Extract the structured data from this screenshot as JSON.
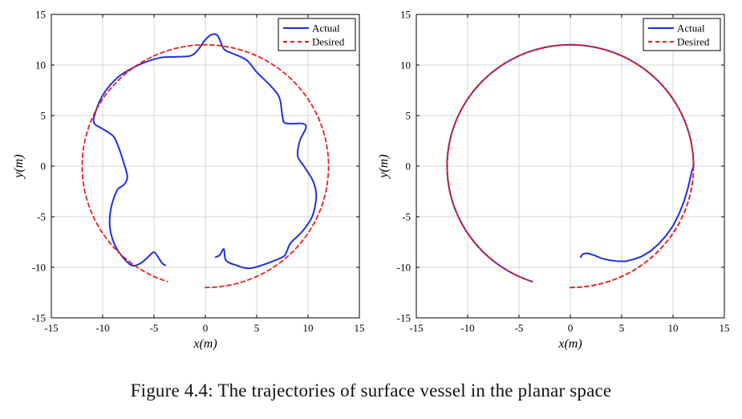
{
  "caption": "Figure 4.4: The trajectories of surface vessel in the planar space",
  "colors": {
    "actual": "#1f2fe0",
    "desired": "#ee1c1c",
    "grid": "#d6d6d6",
    "axis": "#000000"
  },
  "chart_data": [
    {
      "type": "line",
      "xlabel": "x(m)",
      "ylabel": "y(m)",
      "xlim": [
        -15,
        15
      ],
      "ylim": [
        -15,
        15
      ],
      "xticks": [
        -15,
        -10,
        -5,
        0,
        5,
        10,
        15
      ],
      "yticks": [
        -15,
        -10,
        -5,
        0,
        5,
        10,
        15
      ],
      "grid": true,
      "legend_position": "top-right",
      "series": [
        {
          "name": "Actual",
          "style": "solid",
          "color": "#1f2fe0",
          "points": [
            [
              1.0,
              -9.0
            ],
            [
              1.4,
              -8.8
            ],
            [
              1.8,
              -8.2
            ],
            [
              2.0,
              -9.3
            ],
            [
              3.0,
              -9.8
            ],
            [
              4.2,
              -10.1
            ],
            [
              5.5,
              -9.8
            ],
            [
              7.5,
              -9.0
            ],
            [
              7.9,
              -8.5
            ],
            [
              8.3,
              -7.6
            ],
            [
              9.4,
              -6.5
            ],
            [
              10.4,
              -5.0
            ],
            [
              10.8,
              -3.0
            ],
            [
              10.5,
              -1.5
            ],
            [
              9.6,
              0.0
            ],
            [
              9.0,
              1.0
            ],
            [
              9.2,
              2.5
            ],
            [
              9.8,
              3.8
            ],
            [
              9.5,
              4.2
            ],
            [
              8.5,
              4.2
            ],
            [
              7.7,
              4.3
            ],
            [
              7.5,
              5.0
            ],
            [
              7.2,
              6.8
            ],
            [
              6.3,
              8.0
            ],
            [
              5.0,
              9.3
            ],
            [
              4.0,
              10.5
            ],
            [
              2.5,
              11.2
            ],
            [
              1.8,
              11.6
            ],
            [
              1.2,
              12.9
            ],
            [
              0.6,
              13.0
            ],
            [
              0.0,
              12.5
            ],
            [
              -0.8,
              11.4
            ],
            [
              -1.5,
              10.9
            ],
            [
              -3.0,
              10.8
            ],
            [
              -4.5,
              10.7
            ],
            [
              -6.5,
              10.0
            ],
            [
              -8.5,
              8.8
            ],
            [
              -10.0,
              7.0
            ],
            [
              -10.8,
              5.0
            ],
            [
              -10.8,
              4.2
            ],
            [
              -10.2,
              3.8
            ],
            [
              -9.0,
              3.0
            ],
            [
              -8.5,
              2.0
            ],
            [
              -8.0,
              0.5
            ],
            [
              -7.6,
              -1.0
            ],
            [
              -7.9,
              -1.8
            ],
            [
              -8.6,
              -2.4
            ],
            [
              -9.2,
              -4.2
            ],
            [
              -9.3,
              -6.0
            ],
            [
              -8.9,
              -7.6
            ],
            [
              -8.2,
              -8.8
            ],
            [
              -7.2,
              -9.8
            ],
            [
              -6.3,
              -9.6
            ],
            [
              -5.5,
              -8.9
            ],
            [
              -5.0,
              -8.5
            ],
            [
              -4.6,
              -9.0
            ],
            [
              -4.2,
              -9.6
            ],
            [
              -3.9,
              -9.8
            ]
          ]
        },
        {
          "name": "Desired",
          "style": "dashed",
          "color": "#ee1c1c",
          "circle": {
            "center": [
              0,
              0
            ],
            "radius": 12,
            "from_deg": -90,
            "to_deg": 252
          }
        }
      ]
    },
    {
      "type": "line",
      "xlabel": "x(m)",
      "ylabel": "y(m)",
      "xlim": [
        -15,
        15
      ],
      "ylim": [
        -15,
        15
      ],
      "xticks": [
        -15,
        -10,
        -5,
        0,
        5,
        10,
        15
      ],
      "yticks": [
        -15,
        -10,
        -5,
        0,
        5,
        10,
        15
      ],
      "grid": true,
      "legend_position": "top-right",
      "series": [
        {
          "name": "Actual",
          "style": "solid",
          "color": "#1f2fe0",
          "points": [
            [
              1.0,
              -9.0
            ],
            [
              1.2,
              -8.7
            ],
            [
              1.6,
              -8.6
            ],
            [
              2.3,
              -8.8
            ],
            [
              3.0,
              -9.1
            ],
            [
              3.8,
              -9.3
            ],
            [
              4.6,
              -9.4
            ],
            [
              5.4,
              -9.4
            ],
            [
              6.2,
              -9.2
            ],
            [
              7.0,
              -8.9
            ],
            [
              7.8,
              -8.4
            ],
            [
              8.6,
              -7.7
            ],
            [
              9.3,
              -6.9
            ],
            [
              10.0,
              -5.9
            ],
            [
              10.6,
              -4.7
            ],
            [
              11.1,
              -3.4
            ],
            [
              11.5,
              -2.0
            ],
            [
              11.8,
              -0.6
            ],
            [
              12.0,
              0.0
            ]
          ],
          "then_follows_desired": true
        },
        {
          "name": "Desired",
          "style": "dashed",
          "color": "#ee1c1c",
          "circle": {
            "center": [
              0,
              0
            ],
            "radius": 12,
            "from_deg": -90,
            "to_deg": 252
          }
        }
      ]
    }
  ]
}
